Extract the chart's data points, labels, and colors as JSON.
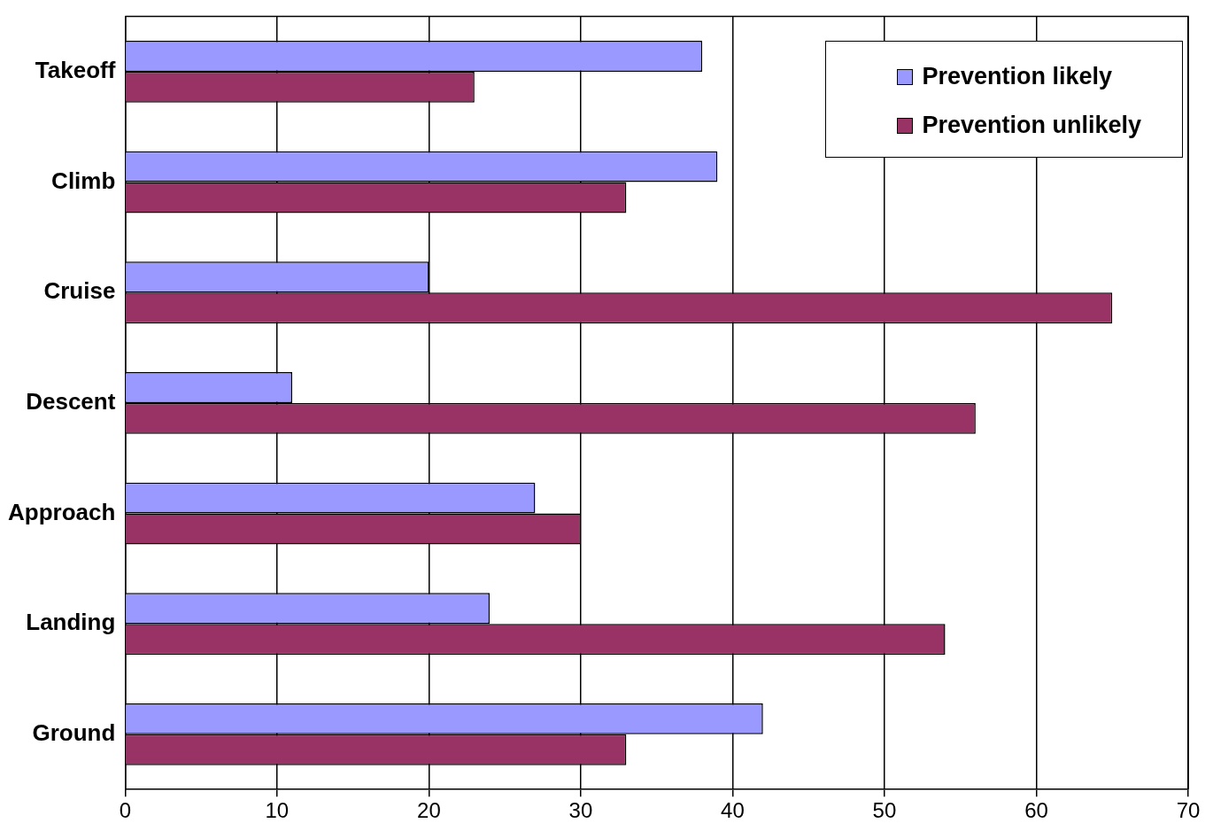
{
  "chart_data": {
    "type": "bar",
    "orientation": "horizontal",
    "categories": [
      "Takeoff",
      "Climb",
      "Cruise",
      "Descent",
      "Approach",
      "Landing",
      "Ground"
    ],
    "series": [
      {
        "name": "Prevention likely",
        "color": "#9999ff",
        "values": [
          38,
          39,
          20,
          11,
          27,
          24,
          42
        ]
      },
      {
        "name": "Prevention unlikely",
        "color": "#993366",
        "values": [
          23,
          33,
          65,
          56,
          30,
          54,
          33
        ]
      }
    ],
    "xlim": [
      0,
      70
    ],
    "xticks": [
      0,
      10,
      20,
      30,
      40,
      50,
      60,
      70
    ],
    "grid": "x",
    "legend": "top right"
  }
}
